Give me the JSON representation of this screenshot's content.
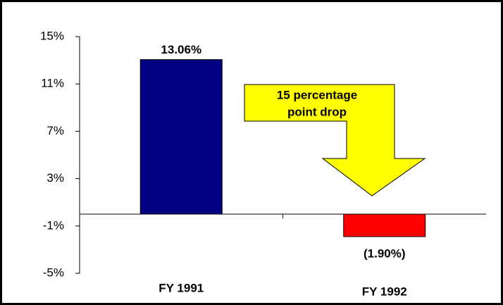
{
  "chart_data": {
    "type": "bar",
    "categories": [
      "FY 1991",
      "FY 1992"
    ],
    "series": [
      {
        "values": [
          13.06,
          -1.9
        ],
        "value_labels": [
          "13.06%",
          "(1.90%)"
        ],
        "colors": [
          "#000080",
          "#ff0000"
        ]
      }
    ],
    "ylim": [
      -5,
      15
    ],
    "yticks": [
      {
        "value": -5,
        "label": "-5%"
      },
      {
        "value": -1,
        "label": "-1%"
      },
      {
        "value": 3,
        "label": "3%"
      },
      {
        "value": 7,
        "label": "7%"
      },
      {
        "value": 11,
        "label": "11%"
      },
      {
        "value": 15,
        "label": "15%"
      }
    ],
    "annotation": [
      "15 percentage",
      "point drop"
    ],
    "annotation_color": "#ffff00",
    "grid": false
  }
}
